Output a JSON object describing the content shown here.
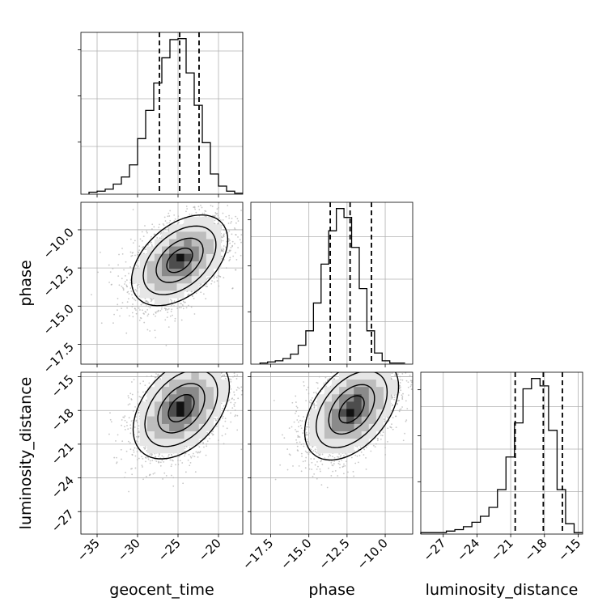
{
  "chart_data": {
    "type": "corner",
    "parameters": [
      "geocent_time",
      "phase",
      "luminosity_distance"
    ],
    "axis_labels": {
      "geocent_time": "geocent_time",
      "phase": "phase",
      "luminosity_distance": "luminosity_distance"
    },
    "ranges": {
      "geocent_time": [
        -37,
        -17
      ],
      "phase": [
        -18.8,
        -8.2
      ],
      "luminosity_distance": [
        -29,
        -14.6
      ]
    },
    "ticks": {
      "geocent_time": {
        "values": [
          -35,
          -30,
          -25,
          -20
        ],
        "labels": [
          "−35",
          "−30",
          "−25",
          "−20"
        ]
      },
      "phase": {
        "values": [
          -17.5,
          -15.0,
          -12.5,
          -10.0
        ],
        "labels": [
          "−17.5",
          "−15.0",
          "−12.5",
          "−10.0"
        ]
      },
      "luminosity_distance": {
        "values": [
          -27,
          -24,
          -21,
          -18,
          -15
        ],
        "labels": [
          "−27",
          "−24",
          "−21",
          "−18",
          "−15"
        ]
      }
    },
    "quantiles": {
      "geocent_time": [
        -27.3,
        -24.8,
        -22.4
      ],
      "phase": [
        -13.6,
        -12.3,
        -10.9
      ],
      "luminosity_distance": [
        -20.6,
        -18.1,
        -16.4
      ]
    },
    "histograms": {
      "geocent_time": {
        "x_start": -36,
        "x_end": -17,
        "counts": [
          2,
          3,
          5,
          10,
          17,
          29,
          55,
          83,
          110,
          135,
          153,
          154,
          120,
          88,
          51,
          20,
          8,
          3,
          1
        ]
      },
      "phase": {
        "x_start": -18.2,
        "x_end": -8.7,
        "counts": [
          1,
          2,
          3,
          5,
          9,
          17,
          30,
          55,
          90,
          120,
          140,
          132,
          105,
          68,
          30,
          10,
          3,
          1,
          1
        ]
      },
      "luminosity_distance": {
        "x_start": -29,
        "x_end": -14.6,
        "counts": [
          1,
          1,
          1,
          2,
          3,
          5,
          8,
          12,
          18,
          30,
          52,
          75,
          98,
          105,
          100,
          70,
          30,
          7,
          1
        ]
      }
    },
    "pairs": [
      {
        "x": "geocent_time",
        "y": "phase",
        "center": [
          -24.8,
          -12.0
        ],
        "sigma": [
          2.9,
          1.45
        ],
        "correlation": 0.45
      },
      {
        "x": "geocent_time",
        "y": "luminosity_distance",
        "center": [
          -24.6,
          -17.8
        ],
        "sigma": [
          2.9,
          2.2
        ],
        "correlation": 0.42
      },
      {
        "x": "phase",
        "y": "luminosity_distance",
        "center": [
          -12.2,
          -17.9
        ],
        "sigma": [
          1.5,
          2.2
        ],
        "correlation": 0.45
      }
    ],
    "grid": true,
    "colors": {
      "contour": "#000000",
      "samples": "#b0b0b0",
      "grid": "#b0b0b0",
      "axes": "#000000"
    }
  }
}
